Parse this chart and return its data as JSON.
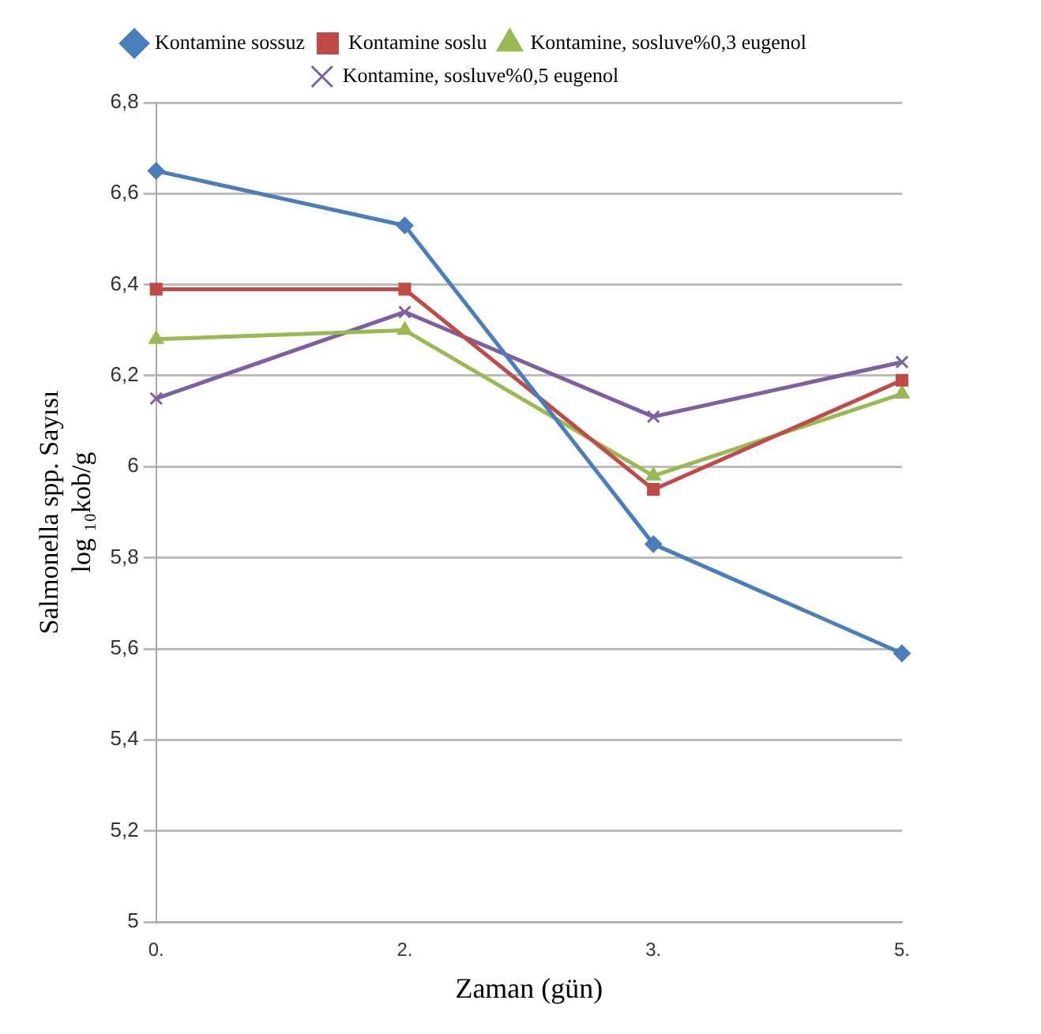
{
  "chart_data": {
    "type": "line",
    "xlabel": "Zaman (gün)",
    "ylabel": "Salmonella spp. Sayısı\nlog ₁₀kob/g",
    "categories": [
      "0.",
      "2.",
      "3.",
      "5."
    ],
    "series": [
      {
        "name": "Kontamine sossuz",
        "color": "#4a7ebb",
        "marker": "diamond",
        "values": [
          6.65,
          6.53,
          5.83,
          5.59
        ]
      },
      {
        "name": "Kontamine soslu",
        "color": "#be4b48",
        "marker": "square",
        "values": [
          6.39,
          6.39,
          5.95,
          6.19
        ]
      },
      {
        "name": "Kontamine, sosluve%0,3 eugenol",
        "color": "#98b954",
        "marker": "triangle",
        "values": [
          6.28,
          6.3,
          5.98,
          6.16
        ]
      },
      {
        "name": "Kontamine, sosluve%0,5 eugenol",
        "color": "#7d60a0",
        "marker": "cross",
        "values": [
          6.15,
          6.34,
          6.11,
          6.23
        ]
      }
    ],
    "ylim": [
      5,
      6.8
    ],
    "yticks": [
      5,
      {
        "value": 5.2,
        "label": "5,2"
      },
      {
        "value": 5.4,
        "label": "5,4"
      },
      {
        "value": 5.6,
        "label": "5,6"
      },
      {
        "value": 5.8,
        "label": "5,8"
      },
      6,
      {
        "value": 6.2,
        "label": "6,2"
      },
      {
        "value": 6.4,
        "label": "6,4"
      },
      {
        "value": 6.6,
        "label": "6,6"
      },
      {
        "value": 6.8,
        "label": "6,8"
      }
    ],
    "grid": "y",
    "legend": "top",
    "line_style": "solid"
  }
}
